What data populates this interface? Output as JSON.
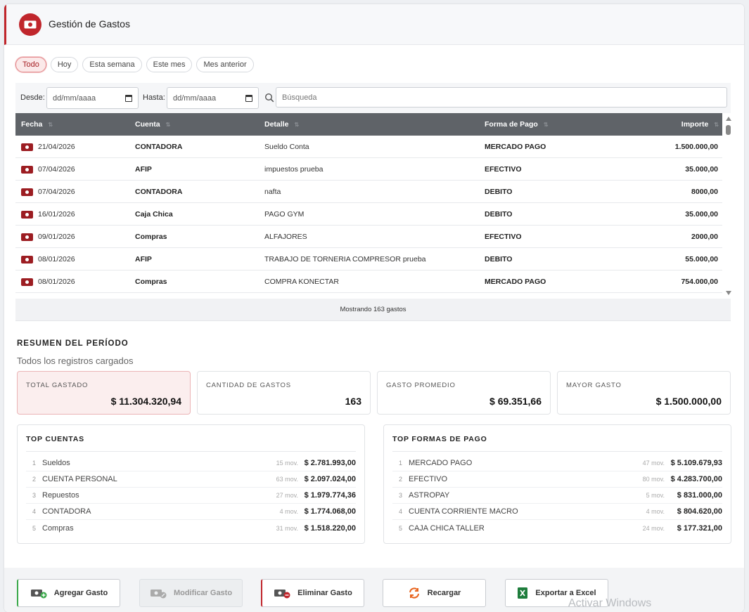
{
  "header": {
    "title": "Gestión de Gastos"
  },
  "filters": [
    "Todo",
    "Hoy",
    "Esta semana",
    "Este mes",
    "Mes anterior"
  ],
  "search": {
    "desde_label": "Desde:",
    "hasta_label": "Hasta:",
    "date_placeholder": "dd/mm/aaaa",
    "search_placeholder": "Búsqueda"
  },
  "table": {
    "columns": [
      "Fecha",
      "Cuenta",
      "Detalle",
      "Forma de Pago",
      "Importe"
    ],
    "rows": [
      [
        "21/04/2026",
        "CONTADORA",
        "Sueldo Conta",
        "MERCADO PAGO",
        "1.500.000,00"
      ],
      [
        "07/04/2026",
        "AFIP",
        "impuestos prueba",
        "EFECTIVO",
        "35.000,00"
      ],
      [
        "07/04/2026",
        "CONTADORA",
        "nafta",
        "DEBITO",
        "8000,00"
      ],
      [
        "16/01/2026",
        "Caja Chica",
        "PAGO GYM",
        "DEBITO",
        "35.000,00"
      ],
      [
        "09/01/2026",
        "Compras",
        "ALFAJORES",
        "EFECTIVO",
        "2000,00"
      ],
      [
        "08/01/2026",
        "AFIP",
        "TRABAJO DE TORNERIA COMPRESOR prueba",
        "DEBITO",
        "55.000,00"
      ],
      [
        "08/01/2026",
        "Compras",
        "COMPRA KONECTAR",
        "MERCADO PAGO",
        "754.000,00"
      ]
    ],
    "footer": "Mostrando 163 gastos"
  },
  "summary": {
    "title": "RESUMEN DEL PERÍODO",
    "subtitle": "Todos los registros cargados",
    "cards": [
      {
        "label": "TOTAL GASTADO",
        "value": "$ 11.304.320,94"
      },
      {
        "label": "CANTIDAD DE GASTOS",
        "value": "163"
      },
      {
        "label": "GASTO PROMEDIO",
        "value": "$ 69.351,66"
      },
      {
        "label": "MAYOR GASTO",
        "value": "$ 1.500.000,00"
      }
    ],
    "top_cuentas": {
      "title": "TOP CUENTAS",
      "items": [
        {
          "rank": "1",
          "name": "Sueldos",
          "mov": "15 mov.",
          "amount": "$ 2.781.993,00"
        },
        {
          "rank": "2",
          "name": "CUENTA PERSONAL",
          "mov": "63 mov.",
          "amount": "$ 2.097.024,00"
        },
        {
          "rank": "3",
          "name": "Repuestos",
          "mov": "27 mov.",
          "amount": "$ 1.979.774,36"
        },
        {
          "rank": "4",
          "name": "CONTADORA",
          "mov": "4 mov.",
          "amount": "$ 1.774.068,00"
        },
        {
          "rank": "5",
          "name": "Compras",
          "mov": "31 mov.",
          "amount": "$ 1.518.220,00"
        }
      ]
    },
    "top_formas": {
      "title": "TOP FORMAS DE PAGO",
      "items": [
        {
          "rank": "1",
          "name": "MERCADO PAGO",
          "mov": "47 mov.",
          "amount": "$ 5.109.679,93"
        },
        {
          "rank": "2",
          "name": "EFECTIVO",
          "mov": "80 mov.",
          "amount": "$ 4.283.700,00"
        },
        {
          "rank": "3",
          "name": "ASTROPAY",
          "mov": "5 mov.",
          "amount": "$ 831.000,00"
        },
        {
          "rank": "4",
          "name": "CUENTA CORRIENTE MACRO",
          "mov": "4 mov.",
          "amount": "$ 804.620,00"
        },
        {
          "rank": "5",
          "name": "CAJA CHICA TALLER",
          "mov": "24 mov.",
          "amount": "$ 177.321,00"
        }
      ]
    }
  },
  "actions": {
    "add": "Agregar Gasto",
    "edit": "Modificar Gasto",
    "delete": "Eliminar Gasto",
    "reload": "Recargar",
    "export": "Exportar a Excel"
  },
  "watermark": "Activar Windows",
  "colors": {
    "accent": "#c0262c",
    "header_row": "#5f6368",
    "add_border": "#3aa84a",
    "excel_green": "#1e7d3c",
    "reload_orange": "#e8641e"
  }
}
